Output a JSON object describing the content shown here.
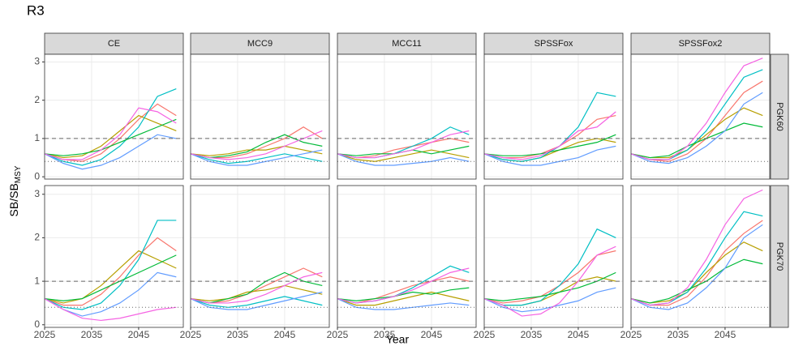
{
  "page": {
    "title": "R3",
    "x_label": "Year",
    "y_label": "SB/SB",
    "y_label_sub": "MSY"
  },
  "facets": {
    "cols": [
      "CE",
      "MCC9",
      "MCC11",
      "SPSSFox",
      "SPSSFox2"
    ],
    "rows": [
      "PGK60",
      "PGK70"
    ]
  },
  "chart_data": [
    {
      "type": "line",
      "x": [
        2025,
        2029,
        2033,
        2037,
        2041,
        2045,
        2049,
        2053
      ],
      "xlim": [
        2025,
        2054.5
      ],
      "xticks": [
        2025,
        2035,
        2045
      ],
      "ylim": [
        -0.06,
        3.2
      ],
      "yticks": [
        0,
        1,
        2,
        3
      ],
      "grid": true,
      "reference_lines": [
        {
          "value": 1,
          "style": "dashed"
        },
        {
          "value": 0.4,
          "style": "dotted"
        }
      ],
      "series": [
        {
          "color": "#F8766D",
          "values": [
            0.6,
            0.45,
            0.4,
            0.6,
            1.0,
            1.5,
            1.9,
            1.6
          ]
        },
        {
          "color": "#B79F00",
          "values": [
            0.6,
            0.5,
            0.55,
            0.8,
            1.2,
            1.6,
            1.4,
            1.2
          ]
        },
        {
          "color": "#00BFC4",
          "values": [
            0.6,
            0.4,
            0.3,
            0.45,
            0.8,
            1.3,
            2.1,
            2.3
          ]
        },
        {
          "color": "#00BA38",
          "values": [
            0.6,
            0.55,
            0.6,
            0.7,
            0.9,
            1.1,
            1.3,
            1.5
          ]
        },
        {
          "color": "#619CFF",
          "values": [
            0.6,
            0.35,
            0.2,
            0.3,
            0.5,
            0.8,
            1.1,
            1.0
          ]
        },
        {
          "color": "#F564E3",
          "values": [
            0.6,
            0.45,
            0.45,
            0.7,
            1.1,
            1.8,
            1.7,
            1.4
          ]
        }
      ]
    },
    {
      "type": "line",
      "x": [
        2025,
        2029,
        2033,
        2037,
        2041,
        2045,
        2049,
        2053
      ],
      "xlim": [
        2025,
        2054.5
      ],
      "xticks": [
        2025,
        2035,
        2045
      ],
      "ylim": [
        -0.06,
        3.2
      ],
      "yticks": [
        0,
        1,
        2,
        3
      ],
      "grid": true,
      "reference_lines": [
        {
          "value": 1,
          "style": "dashed"
        },
        {
          "value": 0.4,
          "style": "dotted"
        }
      ],
      "series": [
        {
          "color": "#F8766D",
          "values": [
            0.6,
            0.5,
            0.5,
            0.6,
            0.8,
            1.0,
            1.3,
            1.0
          ]
        },
        {
          "color": "#B79F00",
          "values": [
            0.6,
            0.55,
            0.6,
            0.7,
            0.7,
            0.8,
            0.7,
            0.6
          ]
        },
        {
          "color": "#00BFC4",
          "values": [
            0.6,
            0.45,
            0.35,
            0.4,
            0.5,
            0.6,
            0.5,
            0.4
          ]
        },
        {
          "color": "#00BA38",
          "values": [
            0.6,
            0.5,
            0.55,
            0.65,
            0.9,
            1.1,
            0.9,
            0.8
          ]
        },
        {
          "color": "#619CFF",
          "values": [
            0.6,
            0.4,
            0.3,
            0.3,
            0.4,
            0.5,
            0.6,
            0.7
          ]
        },
        {
          "color": "#F564E3",
          "values": [
            0.6,
            0.5,
            0.45,
            0.5,
            0.6,
            0.8,
            1.0,
            1.2
          ]
        }
      ]
    },
    {
      "type": "line",
      "x": [
        2025,
        2029,
        2033,
        2037,
        2041,
        2045,
        2049,
        2053
      ],
      "xlim": [
        2025,
        2054.5
      ],
      "xticks": [
        2025,
        2035,
        2045
      ],
      "ylim": [
        -0.06,
        3.2
      ],
      "yticks": [
        0,
        1,
        2,
        3
      ],
      "grid": true,
      "reference_lines": [
        {
          "value": 1,
          "style": "dashed"
        },
        {
          "value": 0.4,
          "style": "dotted"
        }
      ],
      "series": [
        {
          "color": "#F8766D",
          "values": [
            0.6,
            0.5,
            0.55,
            0.7,
            0.8,
            0.9,
            1.0,
            0.9
          ]
        },
        {
          "color": "#B79F00",
          "values": [
            0.6,
            0.45,
            0.4,
            0.5,
            0.6,
            0.7,
            0.6,
            0.5
          ]
        },
        {
          "color": "#00BFC4",
          "values": [
            0.6,
            0.5,
            0.5,
            0.6,
            0.8,
            1.0,
            1.3,
            1.1
          ]
        },
        {
          "color": "#00BA38",
          "values": [
            0.6,
            0.55,
            0.6,
            0.6,
            0.7,
            0.6,
            0.7,
            0.8
          ]
        },
        {
          "color": "#619CFF",
          "values": [
            0.6,
            0.4,
            0.3,
            0.3,
            0.35,
            0.4,
            0.5,
            0.4
          ]
        },
        {
          "color": "#F564E3",
          "values": [
            0.6,
            0.5,
            0.5,
            0.6,
            0.7,
            0.9,
            1.1,
            1.2
          ]
        }
      ]
    },
    {
      "type": "line",
      "x": [
        2025,
        2029,
        2033,
        2037,
        2041,
        2045,
        2049,
        2053
      ],
      "xlim": [
        2025,
        2054.5
      ],
      "xticks": [
        2025,
        2035,
        2045
      ],
      "ylim": [
        -0.06,
        3.2
      ],
      "yticks": [
        0,
        1,
        2,
        3
      ],
      "grid": true,
      "reference_lines": [
        {
          "value": 1,
          "style": "dashed"
        },
        {
          "value": 0.4,
          "style": "dotted"
        }
      ],
      "series": [
        {
          "color": "#F8766D",
          "values": [
            0.6,
            0.5,
            0.5,
            0.6,
            0.8,
            1.1,
            1.5,
            1.6
          ]
        },
        {
          "color": "#B79F00",
          "values": [
            0.6,
            0.45,
            0.4,
            0.5,
            0.7,
            0.9,
            1.0,
            0.9
          ]
        },
        {
          "color": "#00BFC4",
          "values": [
            0.6,
            0.45,
            0.4,
            0.5,
            0.8,
            1.3,
            2.2,
            2.1
          ]
        },
        {
          "color": "#00BA38",
          "values": [
            0.6,
            0.55,
            0.55,
            0.6,
            0.7,
            0.8,
            0.9,
            1.1
          ]
        },
        {
          "color": "#619CFF",
          "values": [
            0.6,
            0.4,
            0.3,
            0.3,
            0.4,
            0.5,
            0.7,
            0.8
          ]
        },
        {
          "color": "#F564E3",
          "values": [
            0.6,
            0.5,
            0.45,
            0.55,
            0.8,
            1.2,
            1.3,
            1.7
          ]
        }
      ]
    },
    {
      "type": "line",
      "x": [
        2025,
        2029,
        2033,
        2037,
        2041,
        2045,
        2049,
        2053
      ],
      "xlim": [
        2025,
        2054.5
      ],
      "xticks": [
        2025,
        2035,
        2045
      ],
      "ylim": [
        -0.06,
        3.2
      ],
      "yticks": [
        0,
        1,
        2,
        3
      ],
      "grid": true,
      "reference_lines": [
        {
          "value": 1,
          "style": "dashed"
        },
        {
          "value": 0.4,
          "style": "dotted"
        }
      ],
      "series": [
        {
          "color": "#F8766D",
          "values": [
            0.6,
            0.45,
            0.4,
            0.6,
            1.0,
            1.6,
            2.2,
            2.5
          ]
        },
        {
          "color": "#B79F00",
          "values": [
            0.6,
            0.5,
            0.5,
            0.7,
            1.1,
            1.5,
            1.8,
            1.6
          ]
        },
        {
          "color": "#00BFC4",
          "values": [
            0.6,
            0.45,
            0.45,
            0.7,
            1.2,
            1.9,
            2.6,
            2.8
          ]
        },
        {
          "color": "#00BA38",
          "values": [
            0.6,
            0.5,
            0.55,
            0.8,
            1.0,
            1.2,
            1.4,
            1.3
          ]
        },
        {
          "color": "#619CFF",
          "values": [
            0.6,
            0.4,
            0.35,
            0.5,
            0.8,
            1.2,
            1.9,
            2.2
          ]
        },
        {
          "color": "#F564E3",
          "values": [
            0.6,
            0.45,
            0.45,
            0.8,
            1.4,
            2.2,
            2.9,
            3.1
          ]
        }
      ]
    },
    {
      "type": "line",
      "x": [
        2025,
        2029,
        2033,
        2037,
        2041,
        2045,
        2049,
        2053
      ],
      "xlim": [
        2025,
        2054.5
      ],
      "xticks": [
        2025,
        2035,
        2045
      ],
      "ylim": [
        -0.06,
        3.2
      ],
      "yticks": [
        0,
        1,
        2,
        3
      ],
      "grid": true,
      "reference_lines": [
        {
          "value": 1,
          "style": "dashed"
        },
        {
          "value": 0.4,
          "style": "dotted"
        }
      ],
      "series": [
        {
          "color": "#F8766D",
          "values": [
            0.6,
            0.45,
            0.45,
            0.7,
            1.1,
            1.6,
            2.0,
            1.7
          ]
        },
        {
          "color": "#B79F00",
          "values": [
            0.6,
            0.5,
            0.6,
            0.9,
            1.3,
            1.7,
            1.5,
            1.3
          ]
        },
        {
          "color": "#00BFC4",
          "values": [
            0.6,
            0.4,
            0.35,
            0.5,
            0.9,
            1.5,
            2.4,
            2.4
          ]
        },
        {
          "color": "#00BA38",
          "values": [
            0.6,
            0.55,
            0.6,
            0.8,
            1.0,
            1.2,
            1.4,
            1.6
          ]
        },
        {
          "color": "#619CFF",
          "values": [
            0.6,
            0.35,
            0.2,
            0.3,
            0.5,
            0.8,
            1.2,
            1.1
          ]
        },
        {
          "color": "#F564E3",
          "values": [
            0.6,
            0.35,
            0.15,
            0.1,
            0.15,
            0.25,
            0.35,
            0.4
          ]
        }
      ]
    },
    {
      "type": "line",
      "x": [
        2025,
        2029,
        2033,
        2037,
        2041,
        2045,
        2049,
        2053
      ],
      "xlim": [
        2025,
        2054.5
      ],
      "xticks": [
        2025,
        2035,
        2045
      ],
      "ylim": [
        -0.06,
        3.2
      ],
      "yticks": [
        0,
        1,
        2,
        3
      ],
      "grid": true,
      "reference_lines": [
        {
          "value": 1,
          "style": "dashed"
        },
        {
          "value": 0.4,
          "style": "dotted"
        }
      ],
      "series": [
        {
          "color": "#F8766D",
          "values": [
            0.6,
            0.5,
            0.55,
            0.7,
            0.9,
            1.1,
            1.3,
            1.1
          ]
        },
        {
          "color": "#B79F00",
          "values": [
            0.6,
            0.55,
            0.6,
            0.75,
            0.8,
            0.9,
            0.8,
            0.7
          ]
        },
        {
          "color": "#00BFC4",
          "values": [
            0.6,
            0.45,
            0.4,
            0.45,
            0.55,
            0.65,
            0.55,
            0.45
          ]
        },
        {
          "color": "#00BA38",
          "values": [
            0.6,
            0.5,
            0.6,
            0.7,
            1.0,
            1.2,
            1.0,
            0.9
          ]
        },
        {
          "color": "#619CFF",
          "values": [
            0.6,
            0.4,
            0.35,
            0.35,
            0.45,
            0.55,
            0.65,
            0.75
          ]
        },
        {
          "color": "#F564E3",
          "values": [
            0.6,
            0.5,
            0.5,
            0.55,
            0.7,
            0.9,
            1.1,
            1.2
          ]
        }
      ]
    },
    {
      "type": "line",
      "x": [
        2025,
        2029,
        2033,
        2037,
        2041,
        2045,
        2049,
        2053
      ],
      "xlim": [
        2025,
        2054.5
      ],
      "xticks": [
        2025,
        2035,
        2045
      ],
      "ylim": [
        -0.06,
        3.2
      ],
      "yticks": [
        0,
        1,
        2,
        3
      ],
      "grid": true,
      "reference_lines": [
        {
          "value": 1,
          "style": "dashed"
        },
        {
          "value": 0.4,
          "style": "dotted"
        }
      ],
      "series": [
        {
          "color": "#F8766D",
          "values": [
            0.6,
            0.5,
            0.6,
            0.75,
            0.9,
            1.0,
            1.1,
            1.0
          ]
        },
        {
          "color": "#B79F00",
          "values": [
            0.6,
            0.45,
            0.45,
            0.55,
            0.65,
            0.75,
            0.65,
            0.55
          ]
        },
        {
          "color": "#00BFC4",
          "values": [
            0.6,
            0.5,
            0.55,
            0.65,
            0.85,
            1.1,
            1.35,
            1.2
          ]
        },
        {
          "color": "#00BA38",
          "values": [
            0.6,
            0.55,
            0.6,
            0.65,
            0.75,
            0.7,
            0.8,
            0.85
          ]
        },
        {
          "color": "#619CFF",
          "values": [
            0.6,
            0.4,
            0.35,
            0.35,
            0.4,
            0.45,
            0.5,
            0.45
          ]
        },
        {
          "color": "#F564E3",
          "values": [
            0.6,
            0.5,
            0.55,
            0.65,
            0.8,
            1.0,
            1.2,
            1.3
          ]
        }
      ]
    },
    {
      "type": "line",
      "x": [
        2025,
        2029,
        2033,
        2037,
        2041,
        2045,
        2049,
        2053
      ],
      "xlim": [
        2025,
        2054.5
      ],
      "xticks": [
        2025,
        2035,
        2045
      ],
      "ylim": [
        -0.06,
        3.2
      ],
      "yticks": [
        0,
        1,
        2,
        3
      ],
      "grid": true,
      "reference_lines": [
        {
          "value": 1,
          "style": "dashed"
        },
        {
          "value": 0.4,
          "style": "dotted"
        }
      ],
      "series": [
        {
          "color": "#F8766D",
          "values": [
            0.6,
            0.5,
            0.55,
            0.65,
            0.9,
            1.2,
            1.6,
            1.7
          ]
        },
        {
          "color": "#B79F00",
          "values": [
            0.6,
            0.45,
            0.45,
            0.55,
            0.75,
            1.0,
            1.1,
            1.0
          ]
        },
        {
          "color": "#00BFC4",
          "values": [
            0.6,
            0.45,
            0.45,
            0.55,
            0.9,
            1.4,
            2.2,
            2.0
          ]
        },
        {
          "color": "#00BA38",
          "values": [
            0.6,
            0.55,
            0.6,
            0.65,
            0.75,
            0.85,
            1.0,
            1.2
          ]
        },
        {
          "color": "#619CFF",
          "values": [
            0.6,
            0.4,
            0.3,
            0.35,
            0.45,
            0.55,
            0.75,
            0.85
          ]
        },
        {
          "color": "#F564E3",
          "values": [
            0.6,
            0.45,
            0.2,
            0.25,
            0.5,
            1.0,
            1.6,
            1.8
          ]
        }
      ]
    },
    {
      "type": "line",
      "x": [
        2025,
        2029,
        2033,
        2037,
        2041,
        2045,
        2049,
        2053
      ],
      "xlim": [
        2025,
        2054.5
      ],
      "xticks": [
        2025,
        2035,
        2045
      ],
      "ylim": [
        -0.06,
        3.2
      ],
      "yticks": [
        0,
        1,
        2,
        3
      ],
      "grid": true,
      "reference_lines": [
        {
          "value": 1,
          "style": "dashed"
        },
        {
          "value": 0.4,
          "style": "dotted"
        }
      ],
      "series": [
        {
          "color": "#F8766D",
          "values": [
            0.6,
            0.45,
            0.45,
            0.65,
            1.1,
            1.7,
            2.1,
            2.4
          ]
        },
        {
          "color": "#B79F00",
          "values": [
            0.6,
            0.5,
            0.55,
            0.75,
            1.2,
            1.6,
            1.9,
            1.7
          ]
        },
        {
          "color": "#00BFC4",
          "values": [
            0.6,
            0.45,
            0.5,
            0.75,
            1.3,
            2.0,
            2.6,
            2.5
          ]
        },
        {
          "color": "#00BA38",
          "values": [
            0.6,
            0.5,
            0.6,
            0.8,
            1.0,
            1.3,
            1.5,
            1.4
          ]
        },
        {
          "color": "#619CFF",
          "values": [
            0.6,
            0.4,
            0.35,
            0.5,
            0.85,
            1.3,
            2.0,
            2.3
          ]
        },
        {
          "color": "#F564E3",
          "values": [
            0.6,
            0.45,
            0.5,
            0.85,
            1.5,
            2.3,
            2.9,
            3.1
          ]
        }
      ]
    }
  ]
}
